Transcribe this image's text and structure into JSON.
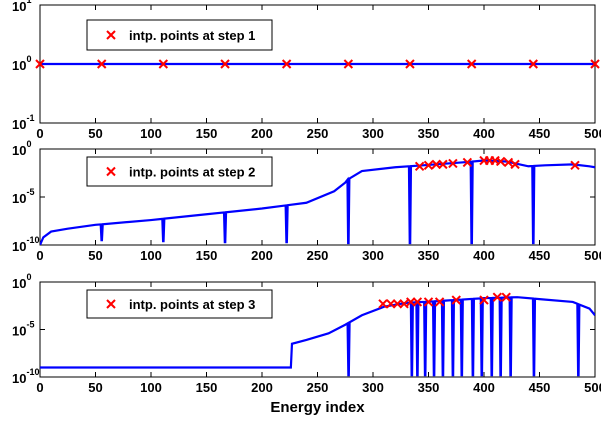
{
  "chart_data": [
    {
      "type": "line",
      "yscale": "log",
      "xlim": [
        0,
        500
      ],
      "ylim_exponent": [
        -1,
        1
      ],
      "x_ticks": [
        "0",
        "50",
        "100",
        "150",
        "200",
        "250",
        "300",
        "350",
        "400",
        "450",
        "500"
      ],
      "y_ticks": [
        {
          "base": "10",
          "exp": "1"
        },
        {
          "base": "10",
          "exp": "0"
        },
        {
          "base": "10",
          "exp": "-1"
        }
      ],
      "legend": {
        "label": "intp. points at step 1",
        "position": "top-left"
      },
      "line_color": "#0000ff",
      "marker_color": "#ff0000",
      "series": [
        {
          "values": [
            [
              0,
              0
            ],
            [
              500,
              0
            ]
          ]
        }
      ],
      "interp_points": [
        [
          0,
          0
        ],
        [
          55.6,
          0
        ],
        [
          111.1,
          0
        ],
        [
          166.7,
          0
        ],
        [
          222.2,
          0
        ],
        [
          277.8,
          0
        ],
        [
          333.3,
          0
        ],
        [
          388.9,
          0
        ],
        [
          444.4,
          0
        ],
        [
          500,
          0
        ]
      ]
    },
    {
      "type": "line",
      "yscale": "log",
      "xlim": [
        0,
        500
      ],
      "ylim_exponent": [
        -10,
        0
      ],
      "x_ticks": [
        "0",
        "50",
        "100",
        "150",
        "200",
        "250",
        "300",
        "350",
        "400",
        "450",
        "500"
      ],
      "y_ticks": [
        {
          "base": "10",
          "exp": "0"
        },
        {
          "base": "10",
          "exp": "-5"
        },
        {
          "base": "10",
          "exp": "-10"
        }
      ],
      "legend": {
        "label": "intp. points at step 2",
        "position": "top-left"
      },
      "line_color": "#0000ff",
      "marker_color": "#ff0000",
      "series": [
        {
          "values": [
            [
              0,
              -10
            ],
            [
              3,
              -9.2
            ],
            [
              10,
              -8.6
            ],
            [
              25,
              -8.3
            ],
            [
              50,
              -7.9
            ],
            [
              100,
              -7.4
            ],
            [
              150,
              -6.8
            ],
            [
              200,
              -6.2
            ],
            [
              240,
              -5.6
            ],
            [
              265,
              -4.4
            ],
            [
              275,
              -3.5
            ],
            [
              277,
              -3.2
            ],
            [
              290,
              -2.3
            ],
            [
              320,
              -1.9
            ],
            [
              345,
              -1.7
            ],
            [
              380,
              -1.4
            ],
            [
              400,
              -1.2
            ],
            [
              420,
              -1.3
            ],
            [
              440,
              -1.8
            ],
            [
              455,
              -1.7
            ],
            [
              480,
              -1.6
            ],
            [
              495,
              -1.8
            ],
            [
              500,
              -1.9
            ]
          ]
        }
      ],
      "dips": [
        {
          "x": 55.6,
          "depth": -9.5
        },
        {
          "x": 111.1,
          "depth": -9.6
        },
        {
          "x": 166.7,
          "depth": -9.7
        },
        {
          "x": 222.2,
          "depth": -9.7
        },
        {
          "x": 277.8,
          "depth": -9.8
        },
        {
          "x": 333.3,
          "depth": -9.8
        },
        {
          "x": 388.9,
          "depth": -9.8
        },
        {
          "x": 444.4,
          "depth": -9.8
        }
      ],
      "interp_points": [
        [
          342,
          -1.8
        ],
        [
          350,
          -1.7
        ],
        [
          357,
          -1.6
        ],
        [
          363,
          -1.6
        ],
        [
          372,
          -1.5
        ],
        [
          385,
          -1.4
        ],
        [
          400,
          -1.2
        ],
        [
          405,
          -1.2
        ],
        [
          410,
          -1.2
        ],
        [
          415,
          -1.3
        ],
        [
          422,
          -1.4
        ],
        [
          428,
          -1.6
        ],
        [
          482,
          -1.7
        ]
      ]
    },
    {
      "type": "line",
      "yscale": "log",
      "xlim": [
        0,
        500
      ],
      "ylim_exponent": [
        -10,
        0
      ],
      "x_ticks": [
        "0",
        "50",
        "100",
        "150",
        "200",
        "250",
        "300",
        "350",
        "400",
        "450",
        "500"
      ],
      "y_ticks": [
        {
          "base": "10",
          "exp": "0"
        },
        {
          "base": "10",
          "exp": "-5"
        },
        {
          "base": "10",
          "exp": "-10"
        }
      ],
      "legend": {
        "label": "intp. points at step 3",
        "position": "top-left"
      },
      "xlabel": "Energy index",
      "line_color": "#0000ff",
      "marker_color": "#ff0000",
      "series": [
        {
          "values": [
            [
              0,
              -9.0
            ],
            [
              226,
              -9.0
            ],
            [
              227,
              -6.5
            ],
            [
              240,
              -6.1
            ],
            [
              260,
              -5.4
            ],
            [
              275,
              -4.5
            ],
            [
              290,
              -3.5
            ],
            [
              310,
              -2.6
            ],
            [
              330,
              -2.2
            ],
            [
              360,
              -2.0
            ],
            [
              400,
              -1.7
            ],
            [
              430,
              -1.6
            ],
            [
              450,
              -1.8
            ],
            [
              480,
              -2.1
            ],
            [
              495,
              -2.8
            ],
            [
              500,
              -3.5
            ]
          ]
        }
      ],
      "dips": [
        {
          "x": 278,
          "depth": -9.8
        },
        {
          "x": 335,
          "depth": -9.8
        },
        {
          "x": 340,
          "depth": -9.8
        },
        {
          "x": 347,
          "depth": -9.8
        },
        {
          "x": 355,
          "depth": -9.8
        },
        {
          "x": 363,
          "depth": -9.8
        },
        {
          "x": 372,
          "depth": -9.8
        },
        {
          "x": 380,
          "depth": -9.8
        },
        {
          "x": 390,
          "depth": -9.8
        },
        {
          "x": 398,
          "depth": -9.8
        },
        {
          "x": 407,
          "depth": -9.8
        },
        {
          "x": 415,
          "depth": -9.8
        },
        {
          "x": 424,
          "depth": -9.8
        },
        {
          "x": 445,
          "depth": -9.8
        },
        {
          "x": 485,
          "depth": -9.8
        }
      ],
      "interp_points": [
        [
          309,
          -2.3
        ],
        [
          316,
          -2.3
        ],
        [
          322,
          -2.3
        ],
        [
          328,
          -2.3
        ],
        [
          334,
          -2.1
        ],
        [
          340,
          -2.1
        ],
        [
          350,
          -2.1
        ],
        [
          360,
          -2.1
        ],
        [
          375,
          -1.9
        ],
        [
          400,
          -1.9
        ],
        [
          412,
          -1.6
        ],
        [
          420,
          -1.6
        ]
      ]
    }
  ]
}
